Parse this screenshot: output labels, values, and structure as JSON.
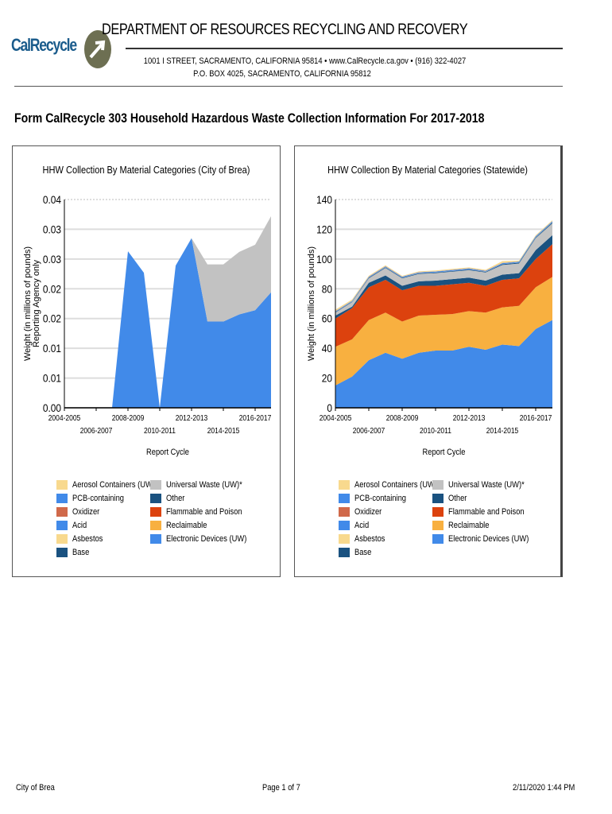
{
  "header": {
    "logo_text": "CalRecycle",
    "department": "DEPARTMENT OF RESOURCES RECYCLING AND RECOVERY",
    "address_line1": "1001 I STREET, SACRAMENTO, CALIFORNIA 95814 • www.CalRecycle.ca.gov • (916) 322-4027",
    "address_line2": "P.O. BOX 4025, SACRAMENTO, CALIFORNIA 95812"
  },
  "page_title": "Form CalRecycle 303 Household Hazardous Waste Collection Information For 2017-2018",
  "chart_data": [
    {
      "type": "area",
      "stacked": true,
      "title": "HHW Collection By Material Categories (City of Brea)",
      "xlabel": "Report Cycle",
      "ylabel": "Weight (in millions of pounds)",
      "ylabel2": "Reporting Agency only",
      "ylim": [
        0,
        0.035
      ],
      "yticks": [
        0,
        0.005,
        0.01,
        0.015,
        0.02,
        0.025,
        0.03,
        0.035
      ],
      "ytick_labels": [
        "0.00",
        "0.01",
        "0.01",
        "0.02",
        "0.02",
        "0.03",
        "0.03",
        "0.04"
      ],
      "grid": true,
      "legend_position": "bottom",
      "x": [
        "2004-2005",
        "2005-2006",
        "2006-2007",
        "2007-2008",
        "2008-2009",
        "2009-2010",
        "2010-2011",
        "2011-2012",
        "2012-2013",
        "2013-2014",
        "2014-2015",
        "2015-2016",
        "2016-2017",
        "2017-2018"
      ],
      "xtick_labels": [
        "2004-2005",
        "2006-2007",
        "2008-2009",
        "2010-2011",
        "2012-2013",
        "2014-2015",
        "2016-2017"
      ],
      "series": [
        {
          "name": "Electronic Devices (UW)",
          "color": "#418ae9",
          "values": [
            0,
            0,
            0,
            0,
            0.0263,
            0.0227,
            0,
            0.0239,
            0.0285,
            0.0145,
            0.0145,
            0.0157,
            0.0164,
            0.0194
          ]
        },
        {
          "name": "Reclaimable",
          "color": "#f8b040",
          "values": [
            0,
            0,
            0,
            0,
            0,
            0,
            0,
            0,
            0,
            0,
            0,
            0,
            0,
            0
          ]
        },
        {
          "name": "Flammable and Poison",
          "color": "#dc420e",
          "values": [
            0,
            0,
            0,
            0,
            0,
            0,
            0,
            0,
            0,
            0,
            0,
            0,
            0,
            0
          ]
        },
        {
          "name": "Other",
          "color": "#1a5280",
          "values": [
            0,
            0,
            0,
            0,
            0,
            0,
            0,
            0,
            0,
            0,
            0,
            0,
            0,
            0
          ]
        },
        {
          "name": "Universal Waste (UW)*",
          "color": "#c2c2c2",
          "values": [
            0,
            0,
            0,
            0,
            0,
            0,
            0,
            0,
            0,
            0.0096,
            0.0096,
            0.0105,
            0.011,
            0.0128
          ]
        },
        {
          "name": "Base",
          "color": "#1a5280",
          "values": [
            0,
            0,
            0,
            0,
            0,
            0,
            0,
            0,
            0,
            0,
            0,
            0,
            0,
            0
          ]
        },
        {
          "name": "Asbestos",
          "color": "#f8d98e",
          "values": [
            0,
            0,
            0,
            0,
            0,
            0,
            0,
            0,
            0,
            0,
            0,
            0,
            0,
            0
          ]
        },
        {
          "name": "Acid",
          "color": "#418ae9",
          "values": [
            0,
            0,
            0,
            0,
            0,
            0,
            0,
            0,
            0,
            0,
            0,
            0,
            0,
            0
          ]
        },
        {
          "name": "Oxidizer",
          "color": "#d0694a",
          "values": [
            0,
            0,
            0,
            0,
            0,
            0,
            0,
            0,
            0,
            0,
            0,
            0,
            0,
            0
          ]
        },
        {
          "name": "PCB-containing",
          "color": "#418ae9",
          "values": [
            0,
            0,
            0,
            0,
            0,
            0,
            0,
            0,
            0,
            0,
            0,
            0,
            0,
            0
          ]
        },
        {
          "name": "Aerosol Containers (UW)",
          "color": "#f8d98e",
          "values": [
            0,
            0,
            0,
            0,
            0,
            0,
            0,
            0,
            0,
            0,
            0,
            0,
            0,
            0
          ]
        }
      ]
    },
    {
      "type": "area",
      "stacked": true,
      "title": "HHW Collection By Material Categories (Statewide)",
      "xlabel": "Report Cycle",
      "ylabel": "Weight (in millions of pounds)",
      "ylim": [
        0,
        140
      ],
      "yticks": [
        0,
        20,
        40,
        60,
        80,
        100,
        120,
        140
      ],
      "ytick_labels": [
        "0",
        "20",
        "40",
        "60",
        "80",
        "100",
        "120",
        "140"
      ],
      "grid": true,
      "legend_position": "bottom",
      "x": [
        "2004-2005",
        "2005-2006",
        "2006-2007",
        "2007-2008",
        "2008-2009",
        "2009-2010",
        "2010-2011",
        "2011-2012",
        "2012-2013",
        "2013-2014",
        "2014-2015",
        "2015-2016",
        "2016-2017",
        "2017-2018"
      ],
      "xtick_labels": [
        "2004-2005",
        "2006-2007",
        "2008-2009",
        "2010-2011",
        "2012-2013",
        "2014-2015",
        "2016-2017"
      ],
      "series": [
        {
          "name": "Electronic Devices (UW)",
          "color": "#418ae9",
          "values": [
            15,
            21,
            32,
            37,
            33,
            37,
            38.5,
            38.5,
            41,
            39,
            42.5,
            41.5,
            53,
            59
          ]
        },
        {
          "name": "Reclaimable",
          "color": "#f8b040",
          "values": [
            26,
            25,
            27,
            27,
            25,
            25,
            24,
            24.5,
            24,
            25,
            25,
            27,
            28,
            29
          ]
        },
        {
          "name": "Flammable and Poison",
          "color": "#dc420e",
          "values": [
            19,
            21,
            22,
            22,
            21,
            20,
            19.5,
            20,
            19,
            18,
            18.5,
            18.5,
            19,
            22
          ]
        },
        {
          "name": "Other",
          "color": "#1a5280",
          "values": [
            2,
            1,
            3,
            3,
            3,
            3,
            3.5,
            3.5,
            3.5,
            3.5,
            3.5,
            3.5,
            6,
            6
          ]
        },
        {
          "name": "Universal Waste (UW)*",
          "color": "#c2c2c2",
          "values": [
            2,
            3,
            3,
            5,
            5,
            5,
            5,
            5,
            5,
            5.5,
            6.5,
            6.5,
            8,
            8
          ]
        },
        {
          "name": "Base",
          "color": "#1a5280",
          "values": [
            0.3,
            0.3,
            0.4,
            0.4,
            0.4,
            0.4,
            0.4,
            0.4,
            0.4,
            0.4,
            0.5,
            0.5,
            0.5,
            0.6
          ]
        },
        {
          "name": "Asbestos",
          "color": "#f8d98e",
          "values": [
            0.1,
            0.1,
            0.1,
            0.1,
            0.1,
            0.1,
            0.1,
            0.1,
            0.1,
            0.1,
            0.1,
            0.1,
            0.1,
            0.1
          ]
        },
        {
          "name": "Acid",
          "color": "#418ae9",
          "values": [
            0.4,
            0.4,
            0.5,
            0.5,
            0.5,
            0.5,
            0.5,
            0.6,
            0.6,
            0.5,
            0.6,
            0.5,
            0.6,
            0.6
          ]
        },
        {
          "name": "Oxidizer",
          "color": "#d0694a",
          "values": [
            0.1,
            0.1,
            0.1,
            0.1,
            0.1,
            0.1,
            0.1,
            0.1,
            0.1,
            0.1,
            0.1,
            0.1,
            0.1,
            0.1
          ]
        },
        {
          "name": "PCB-containing",
          "color": "#418ae9",
          "values": [
            0.1,
            0.1,
            0.1,
            0.1,
            0.1,
            0.1,
            0.1,
            0.1,
            0.1,
            0.1,
            0.1,
            0.1,
            0.1,
            0.1
          ]
        },
        {
          "name": "Aerosol Containers (UW)",
          "color": "#f8d98e",
          "values": [
            1,
            0.8,
            0.6,
            0.6,
            0.5,
            0.5,
            0.6,
            0.6,
            0.6,
            0.6,
            1.2,
            0.6,
            0.6,
            0.6
          ]
        }
      ]
    }
  ],
  "legend": {
    "left_column": [
      {
        "label": "Aerosol Containers (UW)",
        "color": "#f8d98e"
      },
      {
        "label": "PCB-containing",
        "color": "#418ae9"
      },
      {
        "label": "Oxidizer",
        "color": "#d0694a"
      },
      {
        "label": "Acid",
        "color": "#418ae9"
      },
      {
        "label": "Asbestos",
        "color": "#f8d98e"
      },
      {
        "label": "Base",
        "color": "#1a5280"
      }
    ],
    "right_column": [
      {
        "label": "Universal Waste (UW)*",
        "color": "#c2c2c2"
      },
      {
        "label": "Other",
        "color": "#1a5280"
      },
      {
        "label": "Flammable and Poison",
        "color": "#dc420e"
      },
      {
        "label": "Reclaimable",
        "color": "#f8b040"
      },
      {
        "label": "Electronic Devices (UW)",
        "color": "#418ae9"
      }
    ]
  },
  "footer": {
    "agency": "City of Brea",
    "page": "Page 1 of  7",
    "timestamp": "2/11/2020 1:44 PM"
  }
}
